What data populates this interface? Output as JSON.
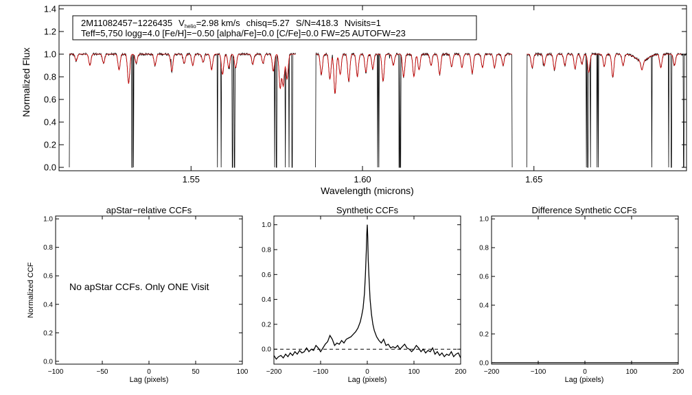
{
  "chart_data": [
    {
      "id": "spectrum",
      "type": "line",
      "title": "",
      "header": {
        "star_id": "2M11082457−1226435",
        "vhelio_symbol": "V",
        "vhelio_subscript": "helio",
        "vhelio_value": "=2.98 km/s",
        "chisq": "chisq=5.27",
        "snr": "S/N=418.3",
        "nvisits": "Nvisits=1",
        "params_line": "Teff=5,750 logg=4.0 [Fe/H]=−0.50 [alpha/Fe]=0.0 [C/Fe]=0.0 FW=25 AUTOFW=23"
      },
      "xlabel": "Wavelength (microns)",
      "ylabel": "Normalized Flux",
      "xlim": [
        1.5115,
        1.6945
      ],
      "ylim": [
        -0.03,
        1.43
      ],
      "x_ticks": [
        1.55,
        1.6,
        1.65
      ],
      "x_tick_labels": [
        "1.55",
        "1.60",
        "1.65"
      ],
      "y_ticks": [
        0.0,
        0.2,
        0.4,
        0.6,
        0.8,
        1.0,
        1.2,
        1.4
      ],
      "y_tick_labels": [
        "0.0",
        "0.2",
        "0.4",
        "0.6",
        "0.8",
        "1.0",
        "1.2",
        "1.4"
      ],
      "chips": [
        [
          1.5145,
          1.5806
        ],
        [
          1.5863,
          1.6437
        ],
        [
          1.6479,
          1.6945
        ]
      ],
      "series": [
        {
          "color": "#000000"
        },
        {
          "color": "#dd0000"
        }
      ],
      "observed_dropouts": [
        1.5145,
        1.5328,
        1.5332,
        1.5577,
        1.5588,
        1.5621,
        1.5627,
        1.5744,
        1.5749,
        1.5775,
        1.5786,
        1.5795,
        1.5806,
        1.5863,
        1.6044,
        1.6048,
        1.6107,
        1.6111,
        1.6437,
        1.6479,
        1.6653,
        1.6657,
        1.6665,
        1.6684,
        1.6688,
        1.6844,
        1.6893,
        1.6901,
        1.6937
      ],
      "absorption_lines": [
        [
          1.5165,
          0.06
        ],
        [
          1.5205,
          0.1
        ],
        [
          1.5245,
          0.08
        ],
        [
          1.529,
          0.14
        ],
        [
          1.5318,
          0.26
        ],
        [
          1.534,
          0.08
        ],
        [
          1.5395,
          0.1
        ],
        [
          1.5444,
          0.15
        ],
        [
          1.548,
          0.08
        ],
        [
          1.5505,
          0.1
        ],
        [
          1.5535,
          0.07
        ],
        [
          1.556,
          0.14
        ],
        [
          1.5592,
          0.18
        ],
        [
          1.561,
          0.12
        ],
        [
          1.563,
          0.12
        ],
        [
          1.568,
          0.09
        ],
        [
          1.571,
          0.08
        ],
        [
          1.574,
          0.15
        ],
        [
          1.576,
          0.3
        ],
        [
          1.5769,
          0.28
        ],
        [
          1.578,
          0.22
        ],
        [
          1.588,
          0.18
        ],
        [
          1.5905,
          0.22
        ],
        [
          1.592,
          0.35
        ],
        [
          1.5935,
          0.18
        ],
        [
          1.596,
          0.24
        ],
        [
          1.5985,
          0.2
        ],
        [
          1.601,
          0.16
        ],
        [
          1.603,
          0.13
        ],
        [
          1.606,
          0.24
        ],
        [
          1.609,
          0.1
        ],
        [
          1.612,
          0.2
        ],
        [
          1.615,
          0.2
        ],
        [
          1.6165,
          0.14
        ],
        [
          1.62,
          0.1
        ],
        [
          1.6225,
          0.18
        ],
        [
          1.626,
          0.11
        ],
        [
          1.629,
          0.12
        ],
        [
          1.632,
          0.17
        ],
        [
          1.635,
          0.12
        ],
        [
          1.6385,
          0.12
        ],
        [
          1.641,
          0.1
        ],
        [
          1.6495,
          0.12
        ],
        [
          1.653,
          0.1
        ],
        [
          1.656,
          0.14
        ],
        [
          1.659,
          0.1
        ],
        [
          1.662,
          0.13
        ],
        [
          1.664,
          0.09
        ],
        [
          1.666,
          0.16
        ],
        [
          1.6705,
          0.11
        ],
        [
          1.673,
          0.2
        ],
        [
          1.676,
          0.1
        ],
        [
          1.6815,
          0.08
        ],
        [
          1.687,
          0.12
        ],
        [
          1.691,
          0.1
        ]
      ]
    },
    {
      "id": "apstar",
      "type": "line",
      "title": "apStar−relative CCFs",
      "xlabel": "Lag (pixels)",
      "ylabel": "Normalized CCF",
      "xlim": [
        -100,
        100
      ],
      "ylim": [
        -0.02,
        1.02
      ],
      "x_ticks": [
        -100,
        -50,
        0,
        50,
        100
      ],
      "x_tick_labels": [
        "−100",
        "−50",
        "0",
        "50",
        "100"
      ],
      "y_ticks": [
        0.0,
        0.2,
        0.4,
        0.6,
        0.8,
        1.0
      ],
      "y_tick_labels": [
        "0.0",
        "0.2",
        "0.4",
        "0.6",
        "0.8",
        "1.0"
      ],
      "annotation": "No apStar CCFs.  Only ONE Visit",
      "series": []
    },
    {
      "id": "synthetic",
      "type": "line",
      "title": "Synthetic CCFs",
      "xlabel": "Lag (pixels)",
      "ylabel": "",
      "xlim": [
        -200,
        200
      ],
      "ylim": [
        -0.12,
        1.07
      ],
      "x_ticks": [
        -200,
        -100,
        0,
        100,
        200
      ],
      "x_tick_labels": [
        "−200",
        "−100",
        "0",
        "100",
        "200"
      ],
      "y_ticks": [
        0.0,
        0.2,
        0.4,
        0.6,
        0.8,
        1.0
      ],
      "y_tick_labels": [
        "0.0",
        "0.2",
        "0.4",
        "0.6",
        "0.8",
        "1.0"
      ],
      "reference_line": 0.0,
      "series": [
        {
          "color": "#000000",
          "x": [
            -200,
            -195,
            -190,
            -185,
            -180,
            -175,
            -170,
            -165,
            -160,
            -155,
            -150,
            -145,
            -140,
            -135,
            -130,
            -125,
            -120,
            -115,
            -110,
            -105,
            -100,
            -95,
            -90,
            -85,
            -80,
            -75,
            -70,
            -65,
            -60,
            -55,
            -50,
            -45,
            -40,
            -35,
            -30,
            -25,
            -20,
            -15,
            -12,
            -9,
            -6,
            -4,
            -2,
            -1,
            0,
            1,
            2,
            4,
            6,
            9,
            12,
            15,
            20,
            25,
            30,
            35,
            40,
            45,
            50,
            55,
            60,
            65,
            70,
            75,
            80,
            85,
            90,
            95,
            100,
            105,
            110,
            115,
            120,
            125,
            130,
            135,
            140,
            145,
            150,
            155,
            160,
            165,
            170,
            175,
            180,
            185,
            190,
            195,
            200
          ],
          "y": [
            -0.05,
            -0.08,
            -0.06,
            -0.05,
            -0.07,
            -0.04,
            -0.06,
            -0.03,
            -0.05,
            -0.02,
            -0.04,
            -0.01,
            -0.03,
            -0.02,
            0.01,
            -0.02,
            0.0,
            -0.01,
            0.03,
            0.01,
            -0.02,
            0.01,
            0.04,
            0.06,
            0.11,
            0.08,
            0.03,
            0.05,
            0.04,
            0.07,
            0.05,
            0.08,
            0.09,
            0.1,
            0.12,
            0.14,
            0.17,
            0.22,
            0.27,
            0.33,
            0.45,
            0.6,
            0.8,
            0.93,
            1.0,
            0.9,
            0.72,
            0.55,
            0.4,
            0.28,
            0.2,
            0.15,
            0.1,
            0.07,
            0.05,
            0.08,
            0.03,
            0.04,
            0.01,
            0.02,
            0.01,
            0.03,
            0.0,
            0.02,
            0.04,
            0.01,
            0.0,
            -0.02,
            0.0,
            0.03,
            0.01,
            -0.02,
            0.0,
            -0.03,
            -0.01,
            -0.02,
            0.01,
            -0.04,
            -0.02,
            -0.05,
            -0.03,
            -0.06,
            -0.04,
            -0.05,
            -0.02,
            -0.06,
            -0.04,
            -0.03,
            -0.07
          ]
        }
      ]
    },
    {
      "id": "difference",
      "type": "line",
      "title": "Difference Synthetic CCFs",
      "xlabel": "Lag (pixels)",
      "ylabel": "",
      "xlim": [
        -200,
        200
      ],
      "ylim": [
        -0.01,
        1.02
      ],
      "x_ticks": [
        -200,
        -100,
        0,
        100,
        200
      ],
      "x_tick_labels": [
        "−200",
        "−100",
        "0",
        "100",
        "200"
      ],
      "y_ticks": [
        0.0,
        0.2,
        0.4,
        0.6,
        0.8,
        1.0
      ],
      "y_tick_labels": [
        "0.0",
        "0.2",
        "0.4",
        "0.6",
        "0.8",
        "1.0"
      ],
      "series": [
        {
          "color": "#000000",
          "x": [
            -200,
            200
          ],
          "y": [
            0.0,
            0.0
          ]
        }
      ]
    }
  ]
}
